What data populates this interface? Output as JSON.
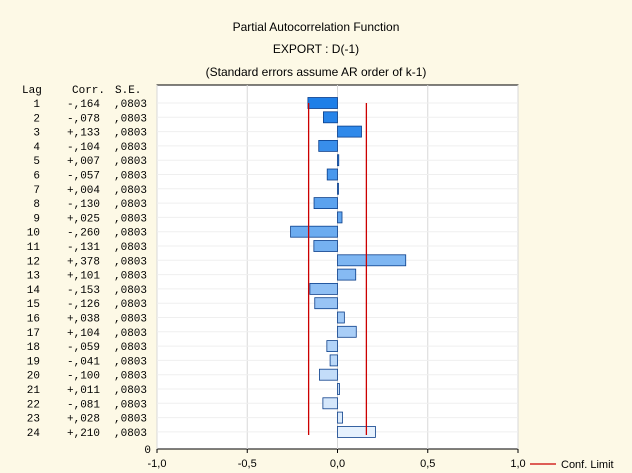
{
  "chart_data": {
    "type": "bar",
    "title": "Partial Autocorrelation Function",
    "subtitle": "EXPORT  : D(-1)",
    "note": "(Standard errors assume AR order of k-1)",
    "table_headers": {
      "lag": "Lag",
      "corr": "Corr.",
      "se": "S.E."
    },
    "lags": [
      1,
      2,
      3,
      4,
      5,
      6,
      7,
      8,
      9,
      10,
      11,
      12,
      13,
      14,
      15,
      16,
      17,
      18,
      19,
      20,
      21,
      22,
      23,
      24
    ],
    "corr": [
      -0.164,
      -0.078,
      0.133,
      -0.104,
      0.007,
      -0.057,
      0.004,
      -0.13,
      0.025,
      -0.26,
      -0.131,
      0.378,
      0.101,
      -0.153,
      -0.126,
      0.038,
      0.104,
      -0.059,
      -0.041,
      -0.1,
      0.011,
      -0.081,
      0.028,
      0.21
    ],
    "corr_text": [
      "-,164",
      "-,078",
      "+,133",
      "-,104",
      "+,007",
      "-,057",
      "+,004",
      "-,130",
      "+,025",
      "-,260",
      "-,131",
      "+,378",
      "+,101",
      "-,153",
      "-,126",
      "+,038",
      "+,104",
      "-,059",
      "-,041",
      "-,100",
      "+,011",
      "-,081",
      "+,028",
      "+,210"
    ],
    "se_text": ",0803",
    "y_extra_label": "0",
    "xlim": [
      -1.0,
      1.0
    ],
    "x_ticks": [
      -1.0,
      -0.5,
      0.0,
      0.5,
      1.0
    ],
    "x_tick_labels": [
      "-1,0",
      "-0,5",
      "0,0",
      "0,5",
      "1,0"
    ],
    "conf_limit": 0.16,
    "legend": {
      "label": "Conf. Limit",
      "position": "bottom-right"
    },
    "grid": true,
    "colors": {
      "bar_top": "#1e7fe8",
      "bar_bottom": "#e6f1fd",
      "bar_border": "#0a3e8a",
      "conf_line": "#cc0000",
      "grid": "#d8d8d8"
    }
  }
}
